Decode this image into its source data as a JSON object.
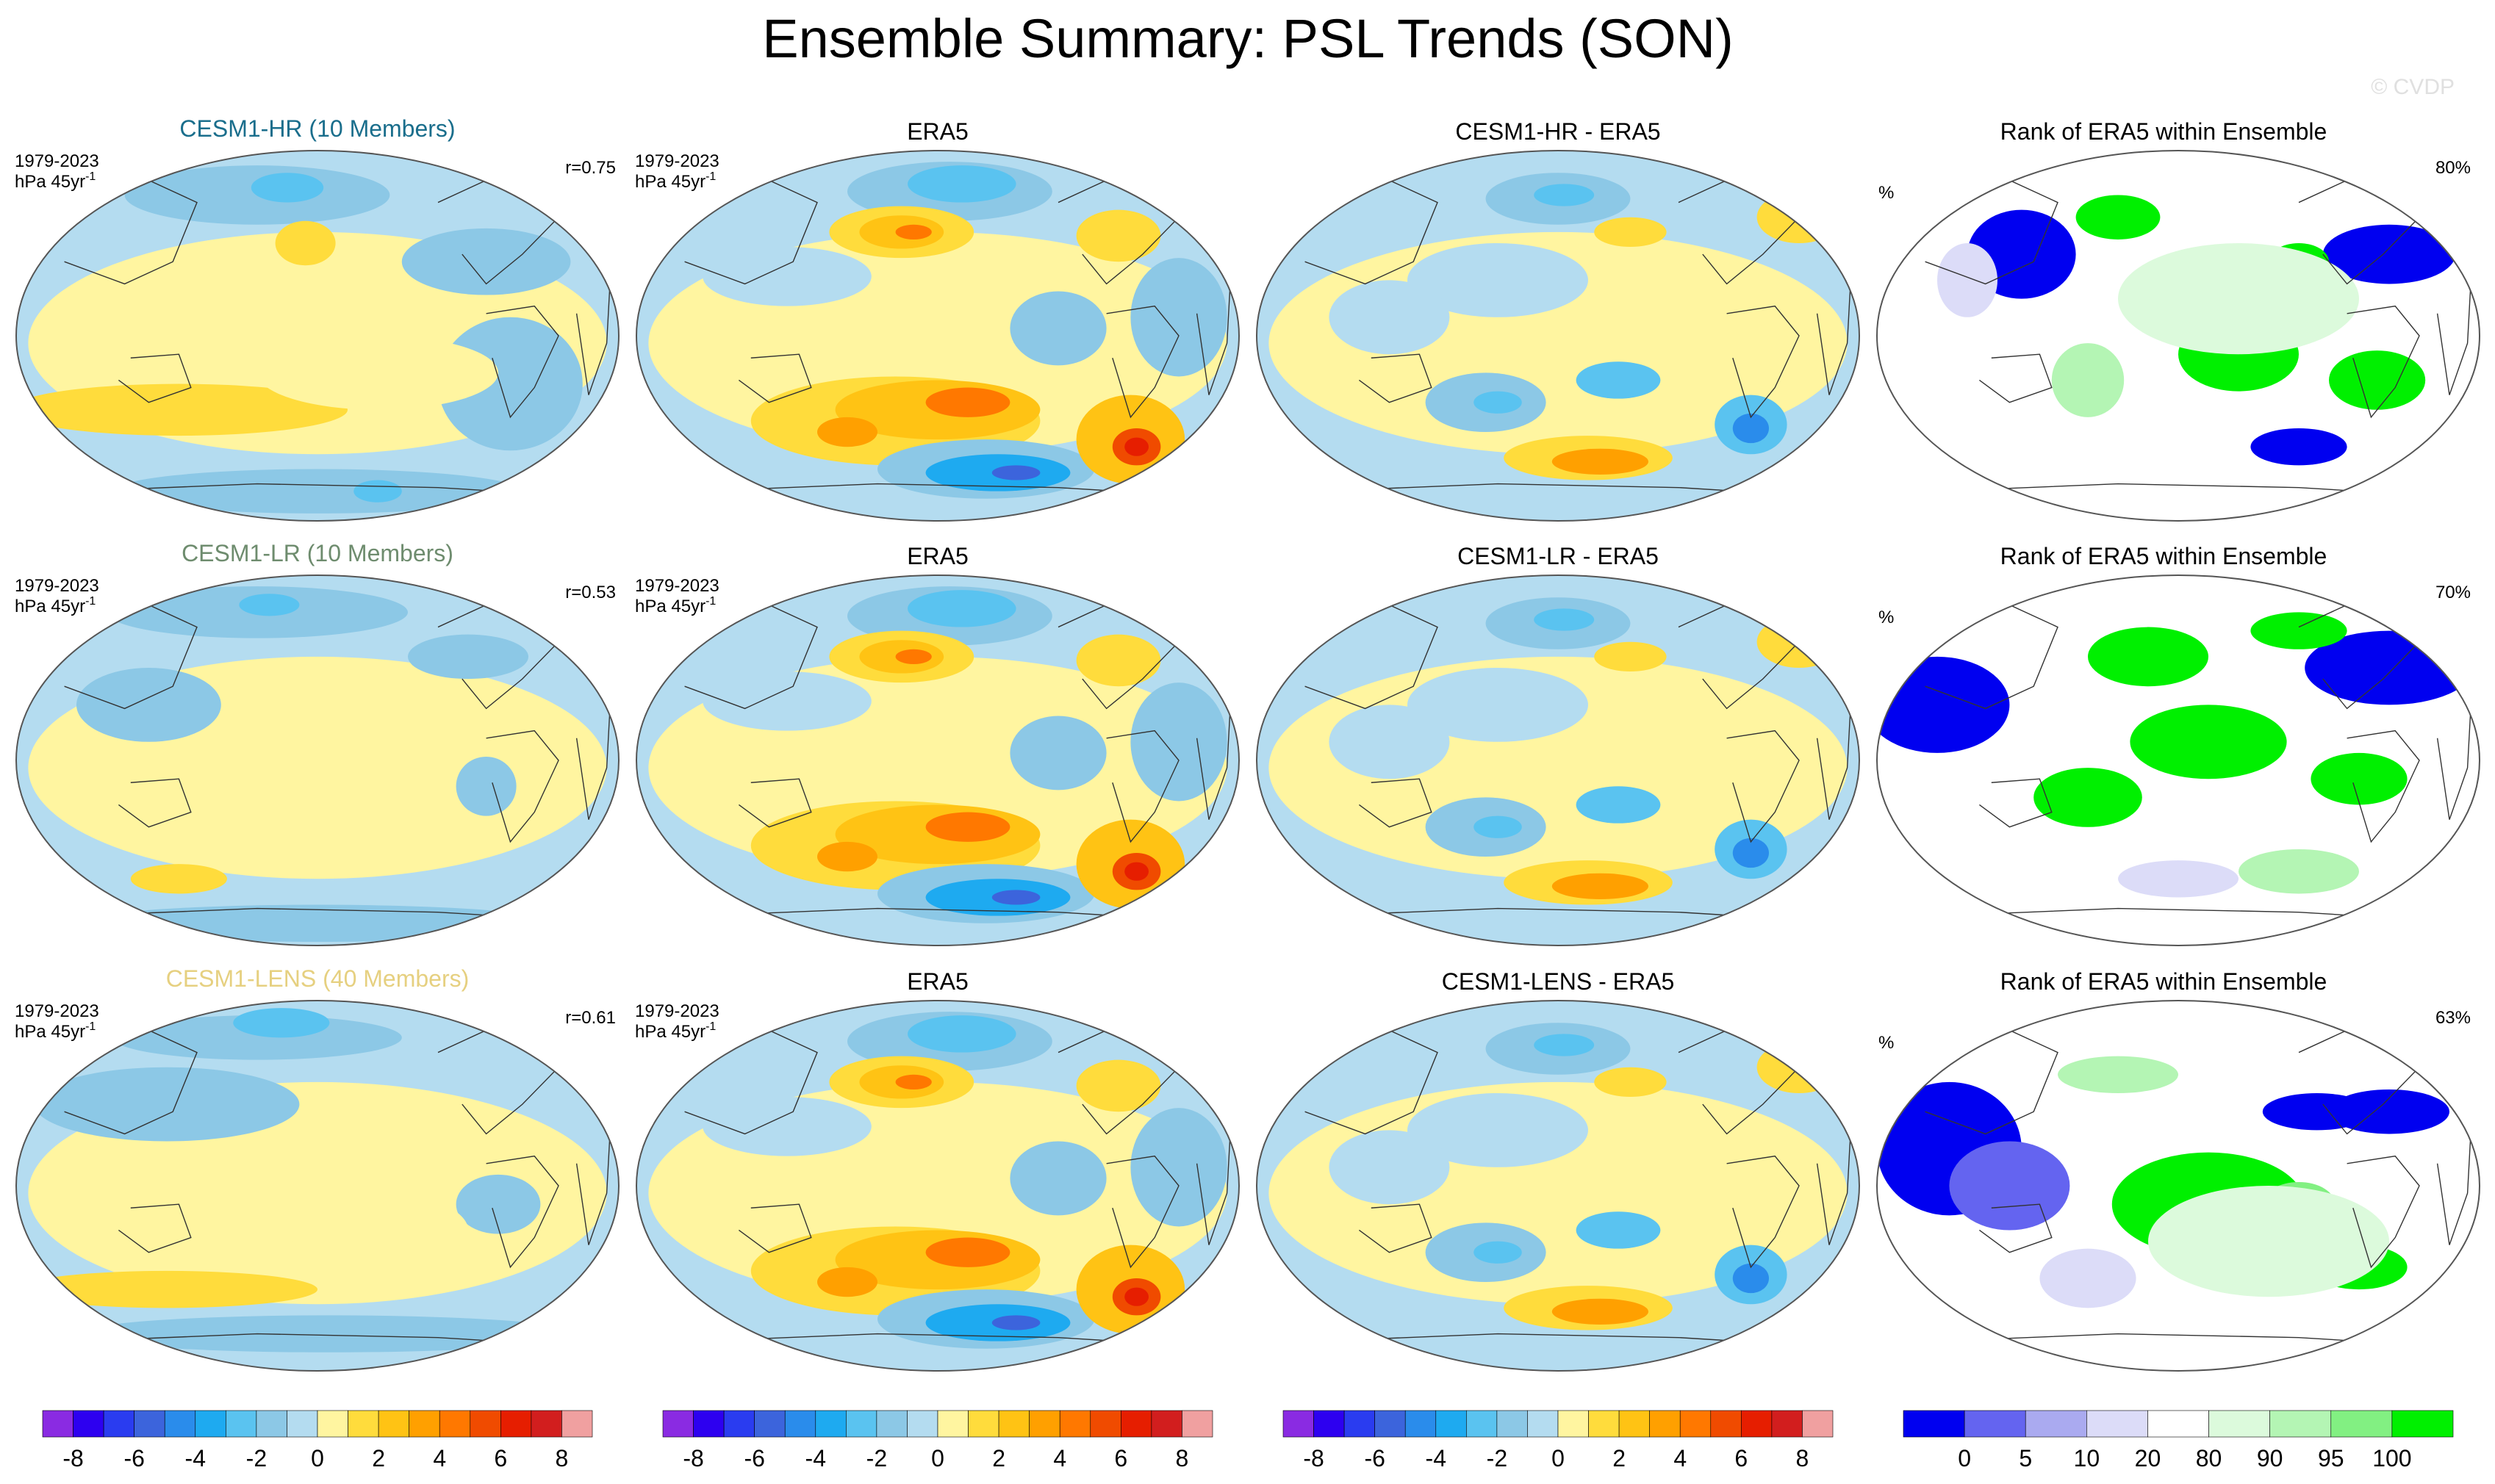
{
  "title": "Ensemble Summary: PSL Trends (SON)",
  "watermark": "© CVDP",
  "colors": {
    "ocean": "#B4DCF0",
    "land_yellow": "#FFF5A0",
    "hr_title": "#1A6E8C",
    "lr_title": "#6E8C6E",
    "lens_title": "#E6D080",
    "outline": "#555555",
    "coast": "#333333"
  },
  "rows": [
    {
      "model_label": "CESM1-HR (10 Members)",
      "model_title_color": "#1A6E8C",
      "period": "1979-2023",
      "units": "hPa 45yr-1",
      "units_base": "hPa 45yr",
      "units_sup": "-1",
      "correlation": "r=0.75",
      "obs_label": "ERA5",
      "diff_label": "CESM1-HR - ERA5",
      "rank_label": "Rank of ERA5 within Ensemble",
      "rank_units": "%",
      "rank_pct": "80%"
    },
    {
      "model_label": "CESM1-LR (10 Members)",
      "model_title_color": "#6E8C6E",
      "period": "1979-2023",
      "units": "hPa 45yr-1",
      "units_base": "hPa 45yr",
      "units_sup": "-1",
      "correlation": "r=0.53",
      "obs_label": "ERA5",
      "diff_label": "CESM1-LR - ERA5",
      "rank_label": "Rank of ERA5 within Ensemble",
      "rank_units": "%",
      "rank_pct": "70%"
    },
    {
      "model_label": "CESM1-LENS (40 Members)",
      "model_title_color": "#E6D080",
      "period": "1979-2023",
      "units": "hPa 45yr-1",
      "units_base": "hPa 45yr",
      "units_sup": "-1",
      "correlation": "r=0.61",
      "obs_label": "ERA5",
      "diff_label": "CESM1-LENS - ERA5",
      "rank_label": "Rank of ERA5 within Ensemble",
      "rank_units": "%",
      "rank_pct": "63%"
    }
  ],
  "chart_data": [
    {
      "type": "map-contour",
      "variable": "PSL trend",
      "season": "SON",
      "projection": "Robinson (Pacific-centered)",
      "units": "hPa 45yr-1",
      "period": "1979-2023",
      "panels": [
        {
          "row": 0,
          "col": 0,
          "label": "CESM1-HR (10 Members)",
          "pattern_correlation": 0.75,
          "range_hint": [
            -4,
            2
          ]
        },
        {
          "row": 0,
          "col": 1,
          "label": "ERA5",
          "range_hint": [
            -6,
            6
          ]
        },
        {
          "row": 0,
          "col": 2,
          "label": "CESM1-HR - ERA5",
          "range_hint": [
            -6,
            6
          ]
        },
        {
          "row": 1,
          "col": 0,
          "label": "CESM1-LR (10 Members)",
          "pattern_correlation": 0.53,
          "range_hint": [
            -2,
            2
          ]
        },
        {
          "row": 1,
          "col": 1,
          "label": "ERA5",
          "range_hint": [
            -6,
            6
          ]
        },
        {
          "row": 1,
          "col": 2,
          "label": "CESM1-LR - ERA5",
          "range_hint": [
            -6,
            6
          ]
        },
        {
          "row": 2,
          "col": 0,
          "label": "CESM1-LENS (40 Members)",
          "pattern_correlation": 0.61,
          "range_hint": [
            -2,
            2
          ]
        },
        {
          "row": 2,
          "col": 1,
          "label": "ERA5",
          "range_hint": [
            -6,
            6
          ]
        },
        {
          "row": 2,
          "col": 2,
          "label": "CESM1-LENS - ERA5",
          "range_hint": [
            -6,
            6
          ]
        }
      ],
      "colorbar": {
        "levels": [
          -8,
          -7,
          -6,
          -5,
          -4,
          -3,
          -2,
          -1,
          0,
          1,
          2,
          3,
          4,
          5,
          6,
          7,
          8
        ],
        "tick_labels": [
          "-8",
          "-6",
          "-4",
          "-2",
          "0",
          "2",
          "4",
          "6",
          "8"
        ],
        "colors": [
          "#8A2BE2",
          "#2D00F0",
          "#2A3CF0",
          "#3C64DC",
          "#2A8CEB",
          "#1EAAF0",
          "#5AC3F0",
          "#8CC8E6",
          "#B4DCF0",
          "#FFF5A0",
          "#FFDC3C",
          "#FFC314",
          "#FFA000",
          "#FF7800",
          "#F04B00",
          "#E61E00",
          "#D21E1E",
          "#F0A0A0"
        ]
      }
    },
    {
      "type": "map-rank",
      "variable": "Rank of ERA5 within Ensemble",
      "units": "%",
      "panels": [
        {
          "row": 0,
          "col": 3,
          "label": "Rank of ERA5 within Ensemble",
          "percent_within": 80
        },
        {
          "row": 1,
          "col": 3,
          "label": "Rank of ERA5 within Ensemble",
          "percent_within": 70
        },
        {
          "row": 2,
          "col": 3,
          "label": "Rank of ERA5 within Ensemble",
          "percent_within": 63
        }
      ],
      "colorbar": {
        "levels": [
          0,
          5,
          10,
          20,
          80,
          90,
          95,
          100
        ],
        "tick_labels": [
          "0",
          "5",
          "10",
          "20",
          "80",
          "90",
          "95",
          "100"
        ],
        "colors": [
          "#0000F0",
          "#6464F0",
          "#AAAAF0",
          "#DCDCF8",
          "#FFFFFF",
          "#DCFADC",
          "#B4F5B4",
          "#82F082",
          "#00F000"
        ]
      }
    }
  ]
}
